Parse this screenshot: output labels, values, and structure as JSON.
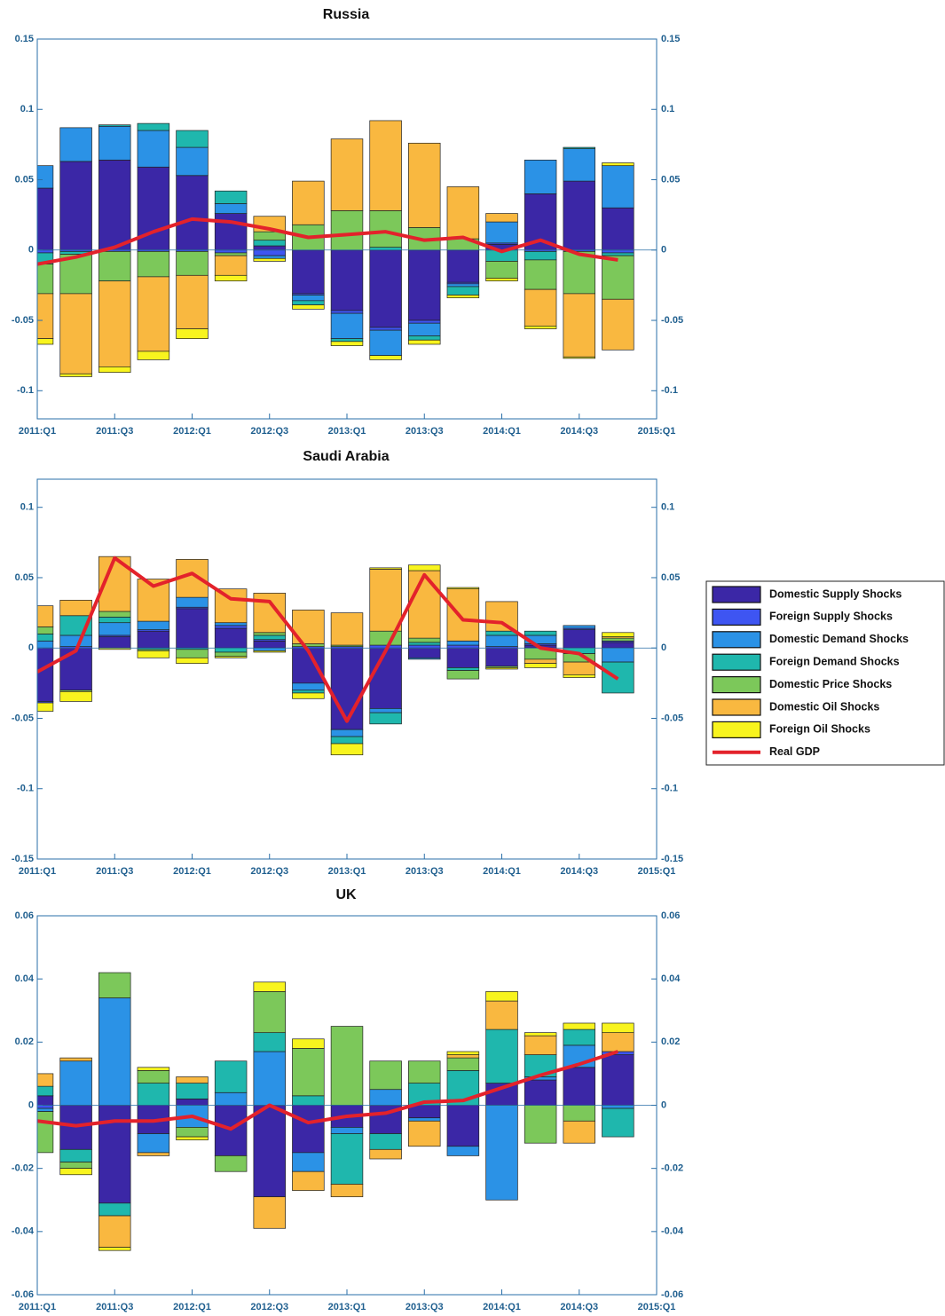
{
  "chart_data": [
    {
      "type": "bar",
      "stacked": true,
      "title": "Russia",
      "x": [
        0,
        1,
        2,
        3,
        4,
        5,
        6,
        7,
        8,
        9,
        10,
        11,
        12,
        13,
        14,
        15
      ],
      "xlim": [
        0,
        16
      ],
      "xticks": [
        {
          "value": 0,
          "label": "2011:Q1"
        },
        {
          "value": 2,
          "label": "2011:Q3"
        },
        {
          "value": 4,
          "label": "2012:Q1"
        },
        {
          "value": 6,
          "label": "2012:Q3"
        },
        {
          "value": 8,
          "label": "2013:Q1"
        },
        {
          "value": 10,
          "label": "2013:Q3"
        },
        {
          "value": 12,
          "label": "2014:Q1"
        },
        {
          "value": 14,
          "label": "2014:Q3"
        },
        {
          "value": 16,
          "label": "2015:Q1"
        }
      ],
      "ylim": [
        -0.12,
        0.15
      ],
      "yticks": [
        -0.1,
        -0.05,
        0,
        0.05,
        0.1,
        0.15
      ],
      "y2lim": [
        -0.12,
        0.15
      ],
      "y2ticks": [
        -0.1,
        -0.05,
        0,
        0.05,
        0.1,
        0.15
      ],
      "series": [
        {
          "name": "Domestic Supply Shocks",
          "color": "#3b27a6",
          "values": [
            0.044,
            0.063,
            0.064,
            0.059,
            0.053,
            0.026,
            0.003,
            -0.031,
            -0.043,
            -0.055,
            -0.05,
            -0.023,
            0.004,
            0.04,
            0.049,
            0.03
          ]
        },
        {
          "name": "Foreign Supply Shocks",
          "color": "#3e55f2",
          "values": [
            -0.002,
            -0.001,
            -0.001,
            -0.001,
            -0.001,
            -0.002,
            -0.004,
            -0.001,
            -0.002,
            -0.002,
            -0.002,
            -0.001,
            0.001,
            -0.001,
            -0.001,
            -0.002
          ]
        },
        {
          "name": "Domestic Demand Shocks",
          "color": "#2b92e6",
          "values": [
            0.016,
            0.024,
            0.024,
            0.026,
            0.02,
            0.007,
            -0.002,
            -0.004,
            -0.018,
            -0.018,
            -0.009,
            -0.002,
            0.015,
            0.024,
            0.023,
            0.03
          ]
        },
        {
          "name": "Foreign Demand Shocks",
          "color": "#1fb7ad",
          "values": [
            -0.008,
            -0.002,
            0.001,
            0.005,
            0.012,
            0.009,
            0.004,
            -0.003,
            -0.002,
            0.002,
            -0.003,
            -0.006,
            -0.008,
            -0.006,
            0.001,
            -0.002
          ]
        },
        {
          "name": "Domestic Price Shocks",
          "color": "#7cc85a",
          "values": [
            -0.021,
            -0.028,
            -0.021,
            -0.018,
            -0.017,
            -0.002,
            0.006,
            0.018,
            0.028,
            0.026,
            0.016,
            0.008,
            -0.012,
            -0.021,
            -0.03,
            -0.031
          ]
        },
        {
          "name": "Domestic Oil Shocks",
          "color": "#f9b840",
          "values": [
            -0.032,
            -0.057,
            -0.061,
            -0.053,
            -0.038,
            -0.014,
            0.011,
            0.031,
            0.051,
            0.064,
            0.06,
            0.037,
            0.006,
            -0.026,
            -0.045,
            -0.036
          ]
        },
        {
          "name": "Foreign Oil Shocks",
          "color": "#f8f41e",
          "values": [
            -0.004,
            -0.002,
            -0.004,
            -0.006,
            -0.007,
            -0.004,
            -0.002,
            -0.003,
            -0.003,
            -0.003,
            -0.003,
            -0.002,
            -0.002,
            -0.002,
            -0.001,
            0.002
          ]
        },
        {
          "name": "Real GDP",
          "color": "#e3222b",
          "type": "line",
          "values": [
            -0.01,
            -0.005,
            0.002,
            0.013,
            0.022,
            0.02,
            0.015,
            0.009,
            0.011,
            0.013,
            0.007,
            0.009,
            -0.001,
            0.007,
            -0.003,
            -0.007
          ]
        }
      ]
    },
    {
      "type": "bar",
      "stacked": true,
      "title": "Saudi Arabia",
      "x": [
        0,
        1,
        2,
        3,
        4,
        5,
        6,
        7,
        8,
        9,
        10,
        11,
        12,
        13,
        14,
        15
      ],
      "xlim": [
        0,
        16
      ],
      "xticks": [
        {
          "value": 0,
          "label": "2011:Q1"
        },
        {
          "value": 2,
          "label": "2011:Q3"
        },
        {
          "value": 4,
          "label": "2012:Q1"
        },
        {
          "value": 6,
          "label": "2012:Q3"
        },
        {
          "value": 8,
          "label": "2013:Q1"
        },
        {
          "value": 10,
          "label": "2013:Q3"
        },
        {
          "value": 12,
          "label": "2014:Q1"
        },
        {
          "value": 14,
          "label": "2014:Q3"
        },
        {
          "value": 16,
          "label": "2015:Q1"
        }
      ],
      "ylim": [
        -0.15,
        0.12
      ],
      "yticks": [
        -0.15,
        -0.1,
        -0.05,
        0,
        0.05,
        0.1
      ],
      "y2lim": [
        -0.15,
        0.12
      ],
      "y2ticks": [
        -0.15,
        -0.1,
        -0.05,
        0,
        0.05,
        0.1
      ],
      "series": [
        {
          "values": [
            -0.038,
            -0.03,
            0.008,
            0.012,
            0.028,
            0.014,
            0.005,
            -0.025,
            -0.058,
            -0.043,
            -0.007,
            -0.014,
            -0.013,
            0.002,
            0.013,
            0.004
          ]
        },
        {
          "values": [
            -0.001,
            0.001,
            0.001,
            0.001,
            0.001,
            0.002,
            0.001,
            0.001,
            0.001,
            0.002,
            0.002,
            0.002,
            0.001,
            0.001,
            0.001,
            0.001
          ]
        },
        {
          "values": [
            0.005,
            0.008,
            0.009,
            0.006,
            0.007,
            0.002,
            -0.002,
            -0.005,
            -0.005,
            -0.003,
            -0.001,
            0.003,
            0.008,
            0.006,
            0.002,
            -0.01
          ]
        },
        {
          "values": [
            0.005,
            0.014,
            0.004,
            -0.001,
            -0.001,
            -0.003,
            0.003,
            -0.002,
            -0.005,
            -0.008,
            0.002,
            -0.002,
            0.003,
            0.003,
            -0.004,
            -0.022
          ]
        },
        {
          "values": [
            0.005,
            -0.001,
            0.004,
            -0.001,
            -0.006,
            -0.003,
            0.002,
            0.002,
            0.001,
            0.01,
            0.003,
            -0.006,
            -0.001,
            -0.008,
            -0.006,
            0.002
          ]
        },
        {
          "values": [
            0.015,
            0.011,
            0.039,
            0.03,
            0.027,
            0.024,
            0.028,
            0.024,
            0.023,
            0.044,
            0.048,
            0.037,
            0.021,
            -0.003,
            -0.009,
            0.001
          ]
        },
        {
          "values": [
            -0.006,
            -0.007,
            -0.001,
            -0.005,
            -0.004,
            -0.001,
            -0.001,
            -0.004,
            -0.008,
            0.001,
            0.004,
            0.001,
            -0.001,
            -0.003,
            -0.002,
            0.003
          ]
        },
        {
          "type": "line",
          "values": [
            -0.017,
            -0.002,
            0.064,
            0.044,
            0.053,
            0.035,
            0.033,
            -0.002,
            -0.052,
            -0.002,
            0.052,
            0.02,
            0.018,
            0.0,
            -0.004,
            -0.022
          ]
        }
      ]
    },
    {
      "type": "bar",
      "stacked": true,
      "title": "UK",
      "x": [
        0,
        1,
        2,
        3,
        4,
        5,
        6,
        7,
        8,
        9,
        10,
        11,
        12,
        13,
        14,
        15
      ],
      "xlim": [
        0,
        16
      ],
      "xticks": [
        {
          "value": 0,
          "label": "2011:Q1"
        },
        {
          "value": 2,
          "label": "2011:Q3"
        },
        {
          "value": 4,
          "label": "2012:Q1"
        },
        {
          "value": 6,
          "label": "2012:Q3"
        },
        {
          "value": 8,
          "label": "2013:Q1"
        },
        {
          "value": 10,
          "label": "2013:Q3"
        },
        {
          "value": 12,
          "label": "2014:Q1"
        },
        {
          "value": 14,
          "label": "2014:Q3"
        },
        {
          "value": 16,
          "label": "2015:Q1"
        }
      ],
      "ylim": [
        -0.06,
        0.06
      ],
      "yticks": [
        -0.06,
        -0.04,
        -0.02,
        0,
        0.02,
        0.04,
        0.06
      ],
      "y2lim": [
        -0.06,
        0.06
      ],
      "y2ticks": [
        -0.06,
        -0.04,
        -0.02,
        0,
        0.02,
        0.04,
        0.06
      ],
      "series": [
        {
          "values": [
            0.003,
            -0.014,
            -0.031,
            -0.009,
            0.002,
            -0.016,
            -0.029,
            -0.015,
            -0.007,
            -0.009,
            -0.004,
            -0.013,
            0.007,
            0.008,
            0.012,
            0.016
          ]
        },
        {
          "values": [
            -0.001,
            0,
            0,
            0,
            0,
            0,
            0,
            0,
            0,
            0,
            0,
            0,
            0,
            0,
            0,
            0.001
          ]
        },
        {
          "values": [
            -0.001,
            0.014,
            0.034,
            -0.006,
            -0.007,
            0.004,
            0.017,
            -0.006,
            -0.002,
            0.005,
            -0.001,
            -0.003,
            -0.03,
            0.001,
            0.007,
            -0.001
          ]
        },
        {
          "values": [
            0.003,
            -0.004,
            -0.004,
            0.007,
            0.005,
            0.01,
            0.006,
            0.003,
            -0.016,
            -0.005,
            0.007,
            0.011,
            0.017,
            0.007,
            0.005,
            -0.009
          ]
        },
        {
          "values": [
            -0.013,
            -0.002,
            0.008,
            0.004,
            -0.003,
            -0.005,
            0.013,
            0.015,
            0.025,
            0.009,
            0.007,
            0.004,
            0,
            -0.012,
            -0.005,
            0
          ]
        },
        {
          "values": [
            0.004,
            0.001,
            -0.01,
            -0.001,
            0.002,
            0,
            -0.01,
            -0.006,
            -0.004,
            -0.003,
            -0.008,
            0.001,
            0.009,
            0.006,
            -0.007,
            0.006
          ]
        },
        {
          "values": [
            0,
            -0.002,
            -0.001,
            0.001,
            -0.001,
            0,
            0.003,
            0.003,
            0,
            0,
            0,
            0.001,
            0.003,
            0.001,
            0.002,
            0.003
          ]
        },
        {
          "type": "line",
          "values": [
            -0.005,
            -0.0065,
            -0.005,
            -0.005,
            -0.0035,
            -0.0075,
            0.0,
            -0.0055,
            -0.0035,
            -0.0025,
            0.001,
            0.0015,
            0.0055,
            0.0095,
            0.013,
            0.017
          ]
        }
      ]
    }
  ]
}
